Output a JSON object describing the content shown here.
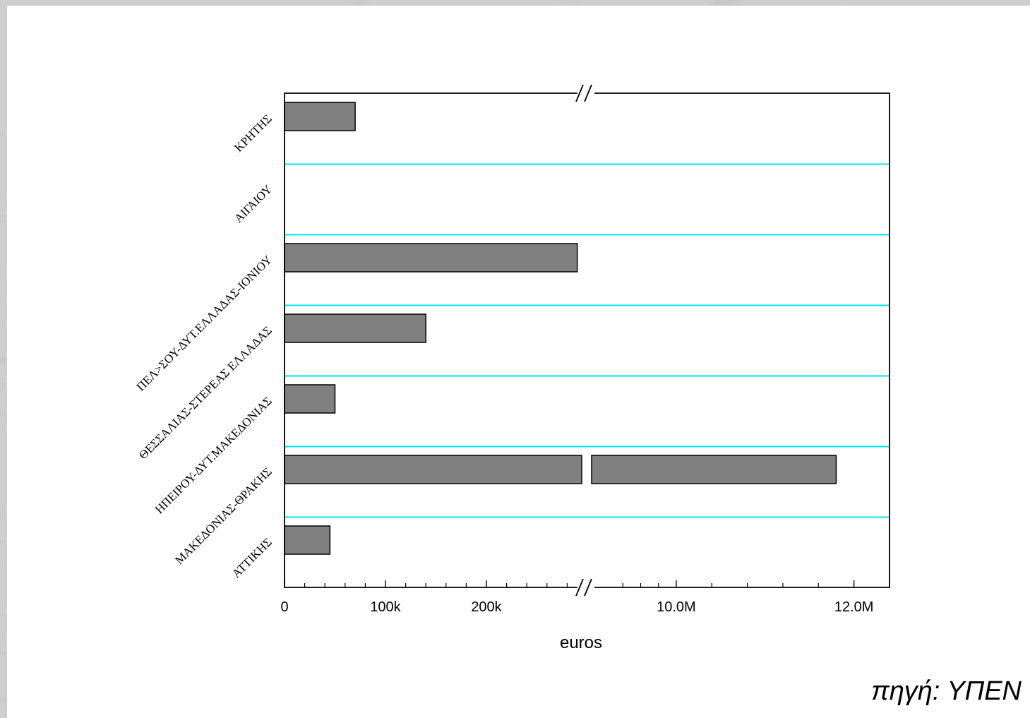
{
  "source_note": "πηγή: ΥΠΕΝ",
  "colors": {
    "bar_fill": "#808080",
    "bar_stroke": "#000000",
    "separator": "#00e5f0",
    "background_texture": "#b9b9b9"
  },
  "chart_data": {
    "type": "bar",
    "orientation": "horizontal",
    "title": "",
    "xlabel": "euros",
    "ylabel": "",
    "categories": [
      "ΚΡΗΤΗΣ",
      "ΑΙΓΑΙΟΥ",
      "ΠΕΛ>ΣΟΥ-ΔΥΤ.ΕΛΛΑΔΑΣ-ΙΟΝΙΟΥ",
      "ΘΕΣΣΑΛΙΑΣ-ΣΤΕΡΕΑΣ ΕΛΛΑΔΑΣ",
      "ΗΠΕΙΡΟΥ-ΔΥΤ.ΜΑΚΕΔΟΝΙΑΣ",
      "ΜΑΚΕΔΟΝΙΑΣ-ΘΡΑΚΗΣ",
      "ΑΤΤΙΚΗΣ"
    ],
    "values": [
      70000,
      0,
      290000,
      140000,
      50000,
      11800000,
      45000
    ],
    "x_axis": {
      "broken": true,
      "segments": [
        {
          "range": [
            0,
            300000
          ]
        },
        {
          "range": [
            9000000,
            12400000
          ]
        }
      ],
      "ticks": [
        {
          "value": 0,
          "label": "0"
        },
        {
          "value": 100000,
          "label": "100k"
        },
        {
          "value": 200000,
          "label": "200k"
        },
        {
          "value": 10000000,
          "label": "10.0M"
        },
        {
          "value": 12000000,
          "label": "12.0M"
        }
      ],
      "minor_ticks": [
        20000,
        40000,
        60000,
        80000,
        120000,
        140000,
        160000,
        180000,
        220000,
        240000,
        260000,
        280000,
        9400000,
        9600000,
        9800000,
        10400000,
        10800000,
        11200000,
        11600000,
        12400000
      ]
    },
    "grid": false,
    "category_separators": true,
    "legend": "none"
  }
}
